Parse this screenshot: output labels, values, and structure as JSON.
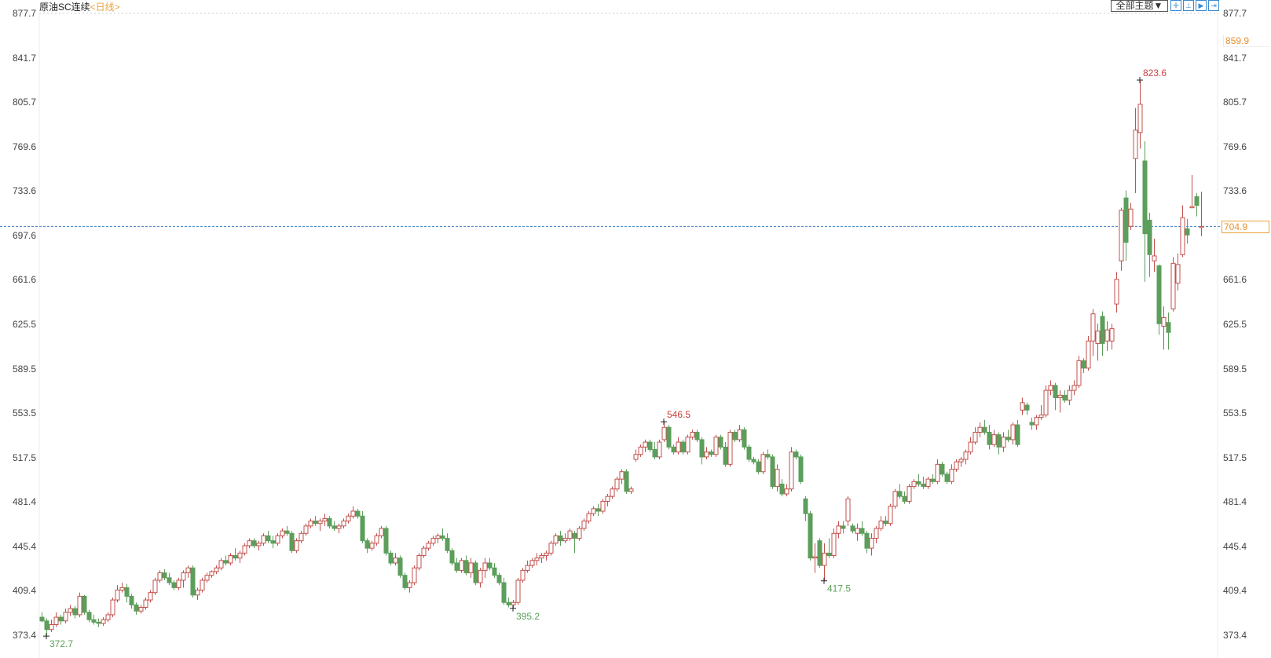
{
  "header": {
    "instrument": "原油SC连续",
    "period": "<日线>"
  },
  "toolbar": {
    "theme_label": "全部主题▼",
    "icons": [
      "crosshair-icon",
      "zoom-fit-icon",
      "play-icon",
      "jump-end-icon"
    ]
  },
  "hover_price": "859.9",
  "last_price": "704.9",
  "colors": {
    "up": "#c2514d",
    "down": "#5c9e5c",
    "last_line": "#3a7fc4",
    "accent": "#e8902c"
  },
  "chart_data": {
    "type": "candlestick",
    "title": "",
    "ylim": [
      373.4,
      877.7
    ],
    "yticks": [
      "877.7",
      "841.7",
      "805.7",
      "769.6",
      "733.6",
      "697.6",
      "661.6",
      "625.5",
      "589.5",
      "553.5",
      "517.5",
      "481.4",
      "445.4",
      "409.4",
      "373.4"
    ],
    "annotations": [
      {
        "label": "372.7",
        "value": 372.7,
        "type": "low"
      },
      {
        "label": "395.2",
        "value": 395.2,
        "type": "low"
      },
      {
        "label": "546.5",
        "value": 546.5,
        "type": "high"
      },
      {
        "label": "417.5",
        "value": 417.5,
        "type": "low"
      },
      {
        "label": "823.6",
        "value": 823.6,
        "type": "high"
      }
    ],
    "ohlc": [
      [
        388,
        392,
        384,
        385
      ],
      [
        385,
        387,
        372.7,
        378
      ],
      [
        378,
        386,
        376,
        382
      ],
      [
        382,
        392,
        380,
        388
      ],
      [
        388,
        390,
        382,
        385
      ],
      [
        385,
        395,
        383,
        392
      ],
      [
        392,
        398,
        389,
        395
      ],
      [
        395,
        397,
        387,
        390
      ],
      [
        390,
        408,
        388,
        405
      ],
      [
        405,
        406,
        390,
        392
      ],
      [
        392,
        394,
        384,
        386
      ],
      [
        386,
        390,
        382,
        384
      ],
      [
        384,
        387,
        380,
        383
      ],
      [
        383,
        388,
        381,
        386
      ],
      [
        386,
        392,
        384,
        390
      ],
      [
        390,
        404,
        388,
        402
      ],
      [
        402,
        414,
        400,
        410
      ],
      [
        410,
        416,
        408,
        412
      ],
      [
        412,
        415,
        400,
        405
      ],
      [
        405,
        407,
        395,
        398
      ],
      [
        398,
        400,
        390,
        393
      ],
      [
        393,
        398,
        391,
        396
      ],
      [
        396,
        404,
        394,
        402
      ],
      [
        402,
        410,
        400,
        408
      ],
      [
        408,
        420,
        406,
        418
      ],
      [
        418,
        426,
        416,
        424
      ],
      [
        424,
        427,
        418,
        420
      ],
      [
        420,
        424,
        414,
        416
      ],
      [
        416,
        418,
        410,
        412
      ],
      [
        412,
        420,
        410,
        418
      ],
      [
        418,
        426,
        412,
        424
      ],
      [
        424,
        430,
        420,
        428
      ],
      [
        428,
        430,
        404,
        406
      ],
      [
        406,
        412,
        402,
        410
      ],
      [
        410,
        420,
        408,
        418
      ],
      [
        418,
        424,
        416,
        422
      ],
      [
        422,
        426,
        420,
        425
      ],
      [
        425,
        430,
        423,
        428
      ],
      [
        428,
        436,
        426,
        434
      ],
      [
        434,
        438,
        430,
        432
      ],
      [
        432,
        440,
        430,
        438
      ],
      [
        438,
        444,
        434,
        436
      ],
      [
        436,
        442,
        432,
        440
      ],
      [
        440,
        448,
        438,
        446
      ],
      [
        446,
        452,
        444,
        450
      ],
      [
        450,
        452,
        444,
        446
      ],
      [
        446,
        450,
        442,
        448
      ],
      [
        448,
        456,
        446,
        454
      ],
      [
        454,
        458,
        448,
        450
      ],
      [
        450,
        454,
        444,
        448
      ],
      [
        448,
        456,
        446,
        454
      ],
      [
        454,
        460,
        452,
        458
      ],
      [
        458,
        462,
        454,
        456
      ],
      [
        456,
        458,
        440,
        442
      ],
      [
        442,
        452,
        440,
        450
      ],
      [
        450,
        458,
        448,
        456
      ],
      [
        456,
        464,
        454,
        462
      ],
      [
        462,
        468,
        460,
        466
      ],
      [
        466,
        470,
        462,
        464
      ],
      [
        464,
        468,
        458,
        466
      ],
      [
        466,
        472,
        462,
        468
      ],
      [
        468,
        470,
        460,
        462
      ],
      [
        462,
        466,
        458,
        460
      ],
      [
        460,
        464,
        456,
        462
      ],
      [
        462,
        468,
        460,
        466
      ],
      [
        466,
        472,
        464,
        470
      ],
      [
        470,
        478,
        468,
        474
      ],
      [
        474,
        476,
        468,
        470
      ],
      [
        470,
        474,
        448,
        450
      ],
      [
        450,
        452,
        440,
        444
      ],
      [
        444,
        450,
        442,
        448
      ],
      [
        448,
        456,
        446,
        454
      ],
      [
        454,
        462,
        452,
        460
      ],
      [
        460,
        462,
        438,
        440
      ],
      [
        440,
        442,
        430,
        432
      ],
      [
        432,
        440,
        430,
        436
      ],
      [
        436,
        438,
        420,
        422
      ],
      [
        422,
        424,
        410,
        412
      ],
      [
        412,
        418,
        408,
        416
      ],
      [
        416,
        430,
        414,
        428
      ],
      [
        428,
        440,
        426,
        438
      ],
      [
        438,
        446,
        436,
        444
      ],
      [
        444,
        450,
        442,
        448
      ],
      [
        448,
        454,
        446,
        452
      ],
      [
        452,
        456,
        448,
        454
      ],
      [
        454,
        460,
        450,
        452
      ],
      [
        452,
        456,
        440,
        442
      ],
      [
        442,
        444,
        430,
        432
      ],
      [
        432,
        436,
        424,
        426
      ],
      [
        426,
        436,
        424,
        434
      ],
      [
        434,
        438,
        422,
        424
      ],
      [
        424,
        436,
        420,
        432
      ],
      [
        432,
        434,
        414,
        416
      ],
      [
        416,
        428,
        412,
        426
      ],
      [
        426,
        436,
        420,
        432
      ],
      [
        432,
        436,
        426,
        428
      ],
      [
        428,
        432,
        420,
        422
      ],
      [
        422,
        424,
        414,
        416
      ],
      [
        416,
        420,
        398,
        400
      ],
      [
        400,
        404,
        396,
        398
      ],
      [
        398,
        402,
        395.2,
        400
      ],
      [
        400,
        420,
        398,
        418
      ],
      [
        418,
        428,
        416,
        426
      ],
      [
        426,
        434,
        424,
        430
      ],
      [
        430,
        436,
        428,
        434
      ],
      [
        434,
        440,
        430,
        436
      ],
      [
        436,
        440,
        432,
        438
      ],
      [
        438,
        442,
        434,
        440
      ],
      [
        440,
        450,
        438,
        448
      ],
      [
        448,
        456,
        446,
        454
      ],
      [
        454,
        458,
        446,
        450
      ],
      [
        450,
        456,
        448,
        452
      ],
      [
        452,
        460,
        450,
        458
      ],
      [
        456,
        458,
        440,
        452
      ],
      [
        452,
        462,
        450,
        460
      ],
      [
        460,
        468,
        458,
        466
      ],
      [
        466,
        474,
        464,
        472
      ],
      [
        472,
        478,
        470,
        476
      ],
      [
        476,
        480,
        470,
        474
      ],
      [
        474,
        484,
        472,
        482
      ],
      [
        482,
        488,
        478,
        486
      ],
      [
        486,
        494,
        484,
        492
      ],
      [
        492,
        502,
        490,
        500
      ],
      [
        500,
        508,
        496,
        506
      ],
      [
        506,
        508,
        488,
        490
      ],
      [
        490,
        494,
        488,
        492
      ],
      [
        516,
        524,
        514,
        520
      ],
      [
        520,
        528,
        518,
        526
      ],
      [
        526,
        532,
        522,
        530
      ],
      [
        530,
        532,
        522,
        524
      ],
      [
        524,
        530,
        516,
        518
      ],
      [
        518,
        532,
        516,
        530
      ],
      [
        532,
        546.5,
        530,
        542
      ],
      [
        542,
        544,
        524,
        526
      ],
      [
        526,
        528,
        520,
        522
      ],
      [
        522,
        534,
        520,
        530
      ],
      [
        530,
        532,
        520,
        522
      ],
      [
        522,
        536,
        520,
        534
      ],
      [
        534,
        540,
        532,
        538
      ],
      [
        538,
        540,
        530,
        532
      ],
      [
        532,
        534,
        512,
        518
      ],
      [
        518,
        526,
        516,
        522
      ],
      [
        522,
        524,
        518,
        520
      ],
      [
        520,
        536,
        518,
        534
      ],
      [
        534,
        536,
        524,
        526
      ],
      [
        526,
        530,
        510,
        512
      ],
      [
        512,
        540,
        510,
        538
      ],
      [
        538,
        540,
        530,
        532
      ],
      [
        532,
        544,
        530,
        540
      ],
      [
        540,
        542,
        524,
        526
      ],
      [
        526,
        528,
        514,
        516
      ],
      [
        516,
        518,
        512,
        514
      ],
      [
        514,
        516,
        504,
        506
      ],
      [
        506,
        522,
        504,
        520
      ],
      [
        520,
        524,
        516,
        518
      ],
      [
        518,
        520,
        492,
        494
      ],
      [
        494,
        512,
        490,
        508
      ],
      [
        496,
        500,
        486,
        488
      ],
      [
        488,
        496,
        486,
        492
      ],
      [
        492,
        526,
        490,
        522
      ],
      [
        522,
        524,
        516,
        518
      ],
      [
        518,
        520,
        496,
        498
      ],
      [
        484,
        486,
        466,
        472
      ],
      [
        472,
        474,
        434,
        436
      ],
      [
        436,
        448,
        424,
        437
      ],
      [
        450,
        452,
        428,
        430
      ],
      [
        430,
        448,
        417.5,
        440
      ],
      [
        440,
        452,
        436,
        438
      ],
      [
        438,
        460,
        436,
        456
      ],
      [
        456,
        466,
        452,
        462
      ],
      [
        462,
        466,
        456,
        460
      ],
      [
        466,
        486,
        462,
        484
      ],
      [
        462,
        464,
        456,
        458
      ],
      [
        456,
        464,
        450,
        460
      ],
      [
        460,
        466,
        454,
        456
      ],
      [
        456,
        458,
        440,
        444
      ],
      [
        444,
        456,
        438,
        452
      ],
      [
        452,
        462,
        448,
        460
      ],
      [
        460,
        470,
        458,
        466
      ],
      [
        466,
        470,
        462,
        464
      ],
      [
        464,
        480,
        462,
        478
      ],
      [
        478,
        492,
        476,
        490
      ],
      [
        490,
        496,
        484,
        486
      ],
      [
        486,
        490,
        480,
        482
      ],
      [
        482,
        496,
        480,
        494
      ],
      [
        494,
        500,
        492,
        498
      ],
      [
        498,
        504,
        494,
        496
      ],
      [
        496,
        502,
        492,
        494
      ],
      [
        494,
        502,
        492,
        500
      ],
      [
        500,
        504,
        496,
        498
      ],
      [
        498,
        516,
        496,
        512
      ],
      [
        512,
        514,
        502,
        504
      ],
      [
        504,
        506,
        496,
        498
      ],
      [
        498,
        512,
        496,
        508
      ],
      [
        508,
        516,
        506,
        514
      ],
      [
        514,
        518,
        510,
        516
      ],
      [
        516,
        524,
        512,
        522
      ],
      [
        522,
        534,
        520,
        530
      ],
      [
        530,
        542,
        528,
        538
      ],
      [
        538,
        546,
        534,
        542
      ],
      [
        542,
        548,
        536,
        538
      ],
      [
        538,
        544,
        524,
        528
      ],
      [
        528,
        540,
        526,
        536
      ],
      [
        536,
        538,
        520,
        526
      ],
      [
        526,
        538,
        522,
        534
      ],
      [
        534,
        540,
        530,
        532
      ],
      [
        532,
        546,
        528,
        544
      ],
      [
        544,
        548,
        526,
        528
      ],
      [
        556,
        566,
        552,
        562
      ],
      [
        560,
        562,
        552,
        556
      ],
      [
        546,
        550,
        540,
        544
      ],
      [
        544,
        552,
        540,
        550
      ],
      [
        550,
        560,
        548,
        552
      ],
      [
        552,
        576,
        550,
        572
      ],
      [
        572,
        580,
        568,
        576
      ],
      [
        576,
        578,
        556,
        566
      ],
      [
        566,
        572,
        554,
        568
      ],
      [
        568,
        572,
        562,
        564
      ],
      [
        564,
        576,
        560,
        572
      ],
      [
        572,
        580,
        568,
        576
      ],
      [
        576,
        600,
        574,
        596
      ],
      [
        596,
        598,
        586,
        590
      ],
      [
        590,
        616,
        588,
        612
      ],
      [
        612,
        638,
        600,
        634
      ],
      [
        610,
        626,
        596,
        620
      ],
      [
        632,
        636,
        600,
        610
      ],
      [
        612,
        628,
        604,
        621
      ],
      [
        612,
        626,
        605,
        622
      ],
      [
        642,
        668,
        635,
        662
      ],
      [
        677,
        720,
        669,
        718
      ],
      [
        728,
        734,
        677,
        692
      ],
      [
        705,
        724,
        702,
        719
      ],
      [
        760,
        801,
        732,
        783
      ],
      [
        781,
        823.6,
        768,
        804
      ],
      [
        758,
        774,
        660,
        699
      ],
      [
        710,
        716,
        664,
        682
      ],
      [
        677,
        695,
        668,
        681
      ],
      [
        673,
        674,
        617,
        626
      ],
      [
        624,
        640,
        605,
        631
      ],
      [
        627,
        635,
        605,
        619
      ],
      [
        638,
        680,
        636,
        675
      ],
      [
        659,
        683,
        653,
        674
      ],
      [
        682,
        722,
        680,
        712
      ],
      [
        703,
        711,
        691,
        698
      ],
      [
        720,
        746.5,
        720,
        721
      ],
      [
        729,
        732,
        713,
        722
      ],
      [
        704,
        733,
        697,
        704.9
      ]
    ]
  }
}
